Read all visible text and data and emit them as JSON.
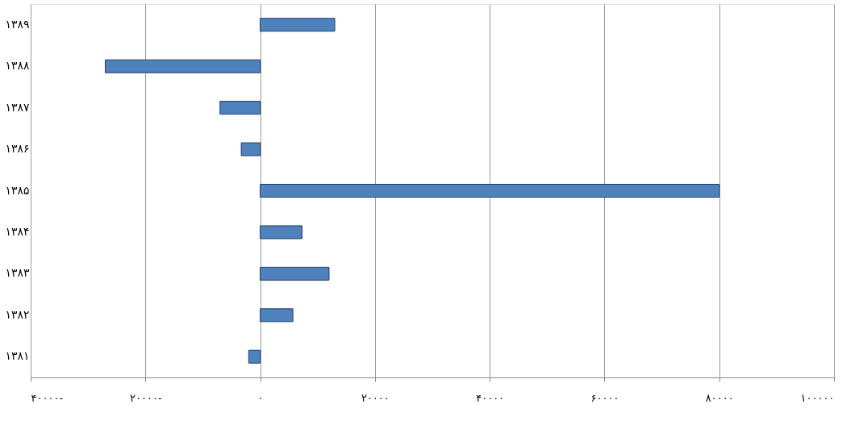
{
  "chart_data": {
    "type": "bar",
    "orientation": "horizontal",
    "categories": [
      "۱۳۸۹",
      "۱۳۸۸",
      "۱۳۸۷",
      "۱۳۸۶",
      "۱۳۸۵",
      "۱۳۸۴",
      "۱۳۸۳",
      "۱۳۸۲",
      "۱۳۸۱"
    ],
    "values": [
      13000,
      -27000,
      -7000,
      -3300,
      80000,
      7300,
      12000,
      5700,
      -2000
    ],
    "color": "#4f81bd",
    "xlim": [
      -40000,
      100000
    ],
    "xticks": [
      {
        "value": -40000,
        "label": "۴۰۰۰۰-"
      },
      {
        "value": -20000,
        "label": "۲۰۰۰۰-"
      },
      {
        "value": 0,
        "label": "۰"
      },
      {
        "value": 20000,
        "label": "۲۰۰۰۰"
      },
      {
        "value": 40000,
        "label": "۴۰۰۰۰"
      },
      {
        "value": 60000,
        "label": "۶۰۰۰۰"
      },
      {
        "value": 80000,
        "label": "۸۰۰۰۰"
      },
      {
        "value": 100000,
        "label": "۱۰۰۰۰۰"
      }
    ],
    "grid": "x"
  }
}
